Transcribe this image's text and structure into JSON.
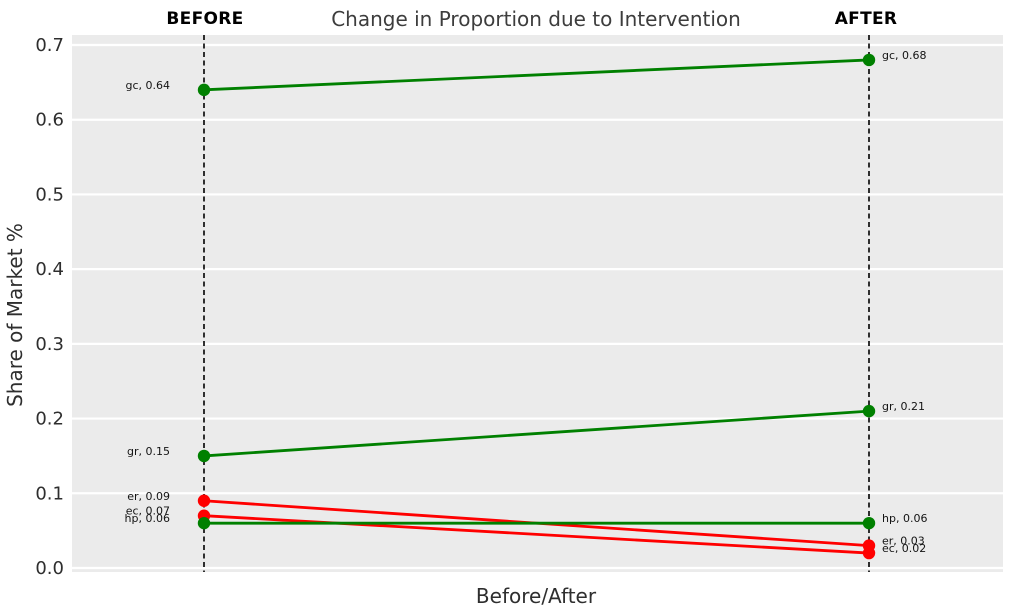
{
  "chart_data": {
    "type": "line",
    "subtype": "slope-chart",
    "title": "Change in Proportion due to Intervention",
    "xlabel": "Before/After",
    "ylabel": "Share of Market %",
    "columns": [
      "BEFORE",
      "AFTER"
    ],
    "ylim": [
      0.0,
      0.7
    ],
    "yticks": [
      "0.0",
      "0.1",
      "0.2",
      "0.3",
      "0.4",
      "0.5",
      "0.6",
      "0.7"
    ],
    "grid": true,
    "legend": false,
    "series": [
      {
        "name": "gc",
        "values": [
          0.64,
          0.68
        ],
        "color": "#008000",
        "point_labels": [
          "gc, 0.64",
          "gc, 0.68"
        ]
      },
      {
        "name": "gr",
        "values": [
          0.15,
          0.21
        ],
        "color": "#008000",
        "point_labels": [
          "gr, 0.15",
          "gr, 0.21"
        ]
      },
      {
        "name": "er",
        "values": [
          0.09,
          0.03
        ],
        "color": "#ff0000",
        "point_labels": [
          "er, 0.09",
          "er, 0.03"
        ]
      },
      {
        "name": "ec",
        "values": [
          0.07,
          0.02
        ],
        "color": "#ff0000",
        "point_labels": [
          "ec, 0.07",
          "ec, 0.02"
        ]
      },
      {
        "name": "hp",
        "values": [
          0.06,
          0.06
        ],
        "color": "#008000",
        "point_labels": [
          "hp, 0.06",
          "hp, 0.06"
        ]
      }
    ],
    "colors": {
      "increase": "#008000",
      "decrease": "#ff0000",
      "plot_background": "#ebebeb",
      "gridline": "#ffffff",
      "column_line": "#000000",
      "tick_text": "#2e2e2e",
      "point_label_text": "#141414"
    }
  }
}
